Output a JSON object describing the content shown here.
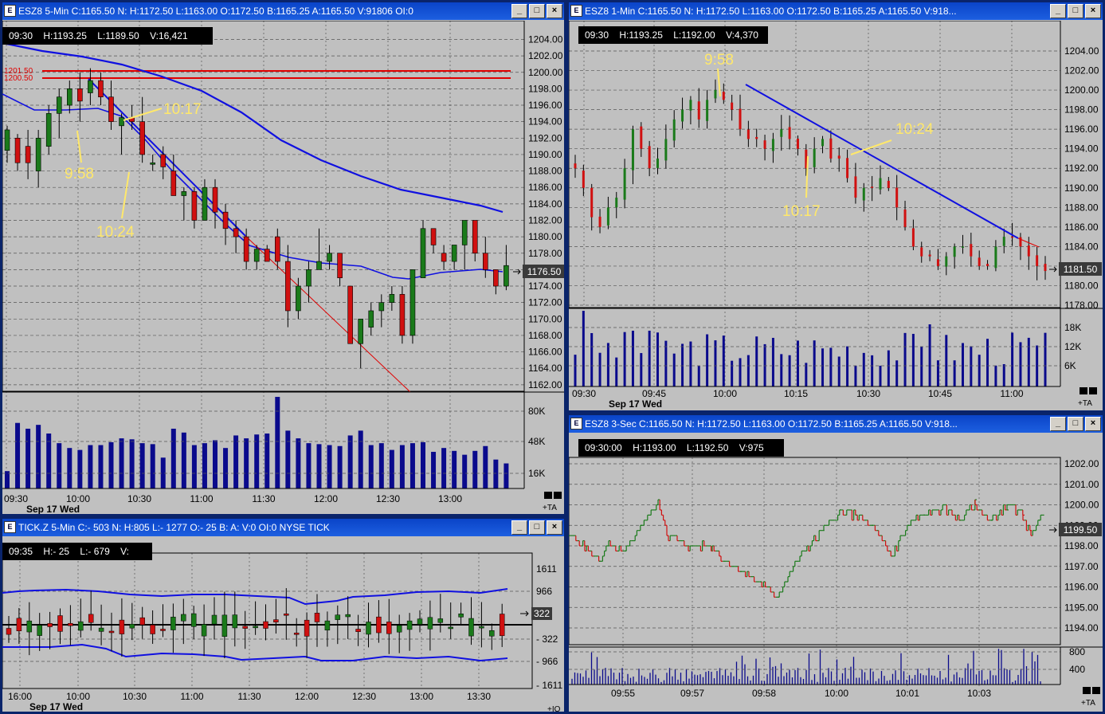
{
  "colors": {
    "up": "#1a7a1a",
    "down": "#d01010",
    "ma": "#1010e0",
    "volume": "#0a0a8c",
    "annotation": "#ffe86a",
    "hline": "#e00000",
    "grid": "#555555"
  },
  "panels": {
    "p1": {
      "title": "ESZ8 5-Min C:1165.50 N: H:1172.50 L:1163.00 O:1172.50 B:1165.25 A:1165.50 V:91806 OI:0",
      "info": {
        "time": "09:30",
        "high": "H:1193.25",
        "low": "L:1189.50",
        "vol": "V:16,421"
      },
      "price_ticks": [
        "1204.00",
        "1202.00",
        "1200.00",
        "1198.00",
        "1196.00",
        "1194.00",
        "1192.00",
        "1190.00",
        "1188.00",
        "1186.00",
        "1184.00",
        "1182.00",
        "1180.00",
        "1178.00",
        "1176.00",
        "1174.00",
        "1172.00",
        "1170.00",
        "1168.00",
        "1166.00",
        "1164.00",
        "1162.00"
      ],
      "last_price": "1176.50",
      "hlines": [
        "1201.50",
        "1200.50"
      ],
      "vol_ticks": [
        "80K",
        "48K",
        "16K"
      ],
      "time_ticks": [
        "09:30",
        "10:00",
        "10:30",
        "11:00",
        "11:30",
        "12:00",
        "12:30",
        "13:00"
      ],
      "date": "Sep 17 Wed",
      "annotations": [
        "10:17",
        "9:58",
        "10:24"
      ],
      "corner": "+TA",
      "candles": [
        [
          1190.5,
          1193.5,
          1189,
          1193
        ],
        [
          1192,
          1192.5,
          1188,
          1189
        ],
        [
          1191,
          1193,
          1187,
          1189
        ],
        [
          1188,
          1193,
          1186,
          1192
        ],
        [
          1191,
          1196,
          1190,
          1195
        ],
        [
          1195,
          1198,
          1192,
          1197
        ],
        [
          1196,
          1199,
          1195,
          1198
        ],
        [
          1198,
          1200,
          1194,
          1196.5
        ],
        [
          1197.5,
          1200.5,
          1196,
          1199
        ],
        [
          1199,
          1200,
          1196,
          1197
        ],
        [
          1197,
          1199,
          1193,
          1194
        ],
        [
          1193.5,
          1195,
          1190,
          1194.5
        ],
        [
          1194.5,
          1196,
          1193,
          1194
        ],
        [
          1194,
          1197,
          1189,
          1190
        ],
        [
          1189,
          1190,
          1188,
          1189
        ],
        [
          1190,
          1191,
          1187,
          1188.5
        ],
        [
          1188,
          1190,
          1185,
          1185
        ],
        [
          1185,
          1186,
          1182,
          1185.5
        ],
        [
          1185.5,
          1186,
          1181,
          1182
        ],
        [
          1182,
          1187,
          1182,
          1186
        ],
        [
          1186,
          1187,
          1181,
          1183
        ],
        [
          1183,
          1184,
          1179,
          1181
        ],
        [
          1181,
          1182,
          1178,
          1180
        ],
        [
          1180,
          1181,
          1176,
          1177
        ],
        [
          1177,
          1179,
          1176,
          1178.5
        ],
        [
          1178.5,
          1179,
          1177,
          1177
        ],
        [
          1180,
          1181,
          1176,
          1177
        ],
        [
          1177,
          1179,
          1169,
          1171
        ],
        [
          1171,
          1175,
          1170,
          1174
        ],
        [
          1174,
          1177,
          1172,
          1176
        ],
        [
          1176,
          1181,
          1176,
          1177
        ],
        [
          1177,
          1179,
          1176,
          1178
        ],
        [
          1178,
          1178,
          1174,
          1175
        ],
        [
          1174,
          1174,
          1167,
          1167
        ],
        [
          1167,
          1170,
          1164,
          1170
        ],
        [
          1169,
          1172,
          1168,
          1171
        ],
        [
          1171,
          1173,
          1169,
          1172
        ],
        [
          1172,
          1174,
          1171,
          1173
        ],
        [
          1173,
          1174,
          1167,
          1168
        ],
        [
          1168,
          1176,
          1167,
          1176
        ],
        [
          1175,
          1182,
          1175,
          1181
        ],
        [
          1181,
          1181,
          1178,
          1179
        ],
        [
          1178,
          1179,
          1176,
          1177
        ],
        [
          1177,
          1179,
          1176,
          1179
        ],
        [
          1179,
          1182,
          1176,
          1182
        ],
        [
          1182,
          1182,
          1177,
          1178
        ],
        [
          1178,
          1180,
          1175,
          1176
        ],
        [
          1176,
          1176,
          1173,
          1174
        ],
        [
          1174,
          1179,
          1173.5,
          1176.5
        ]
      ],
      "volume": [
        18,
        68,
        62,
        66,
        57,
        47,
        42,
        40,
        45,
        45,
        48,
        52,
        51,
        47,
        46,
        32,
        62,
        58,
        45,
        47,
        50,
        42,
        55,
        52,
        56,
        57,
        95,
        60,
        52,
        47,
        46,
        45,
        44,
        55,
        60,
        45,
        47,
        40,
        45,
        47,
        48,
        38,
        42,
        39,
        35,
        39,
        44,
        30,
        26
      ]
    },
    "p2": {
      "title": "ESZ8 1-Min C:1165.50 N: H:1172.50 L:1163.00 O:1172.50 B:1165.25 A:1165.50 V:918...",
      "info": {
        "time": "09:30",
        "high": "H:1193.25",
        "low": "L:1192.00",
        "vol": "V:4,370"
      },
      "price_ticks": [
        "1204.00",
        "1202.00",
        "1200.00",
        "1198.00",
        "1196.00",
        "1194.00",
        "1192.00",
        "1190.00",
        "1188.00",
        "1186.00",
        "1184.00",
        "1182.00",
        "1180.00",
        "1178.00"
      ],
      "last_price": "1181.50",
      "vol_ticks": [
        "18K",
        "12K",
        "6K"
      ],
      "time_ticks": [
        "09:30",
        "09:45",
        "10:00",
        "10:15",
        "10:30",
        "10:45",
        "11:00"
      ],
      "date": "Sep 17 Wed",
      "annotations": [
        "9:58",
        "10:24",
        "10:17"
      ],
      "corner": "+TA"
    },
    "p3": {
      "title": "TICK.Z 5-Min C:- 503 N: H:805 L:- 1277 O:- 25 B: A: V:0 OI:0 NYSE TICK",
      "info": {
        "time": "09:35",
        "high": "H:- 25",
        "low": "L:- 679",
        "vol": "V:"
      },
      "ticks": [
        "1611",
        "966",
        "322",
        "- 322",
        "- 966",
        "- 1611"
      ],
      "last_value": "322",
      "time_ticks": [
        "16:00",
        "10:00",
        "10:30",
        "11:00",
        "11:30",
        "12:00",
        "12:30",
        "13:00",
        "13:30"
      ],
      "date": "Sep 17 Wed",
      "corner": "+IQ"
    },
    "p4": {
      "title": "ESZ8 3-Sec C:1165.50 N: H:1172.50 L:1163.00 O:1172.50 B:1165.25 A:1165.50 V:918...",
      "info": {
        "time": "09:30:00",
        "high": "H:1193.00",
        "low": "L:1192.50",
        "vol": "V:975"
      },
      "price_ticks": [
        "1202.00",
        "1201.00",
        "1200.00",
        "1199.00",
        "1198.00",
        "1197.00",
        "1196.00",
        "1195.00",
        "1194.00"
      ],
      "last_price": "1199.50",
      "vol_ticks": [
        "800",
        "400"
      ],
      "time_ticks": [
        "09:55",
        "09:57",
        "09:58",
        "10:00",
        "10:01",
        "10:03"
      ],
      "corner": "+TA"
    }
  }
}
